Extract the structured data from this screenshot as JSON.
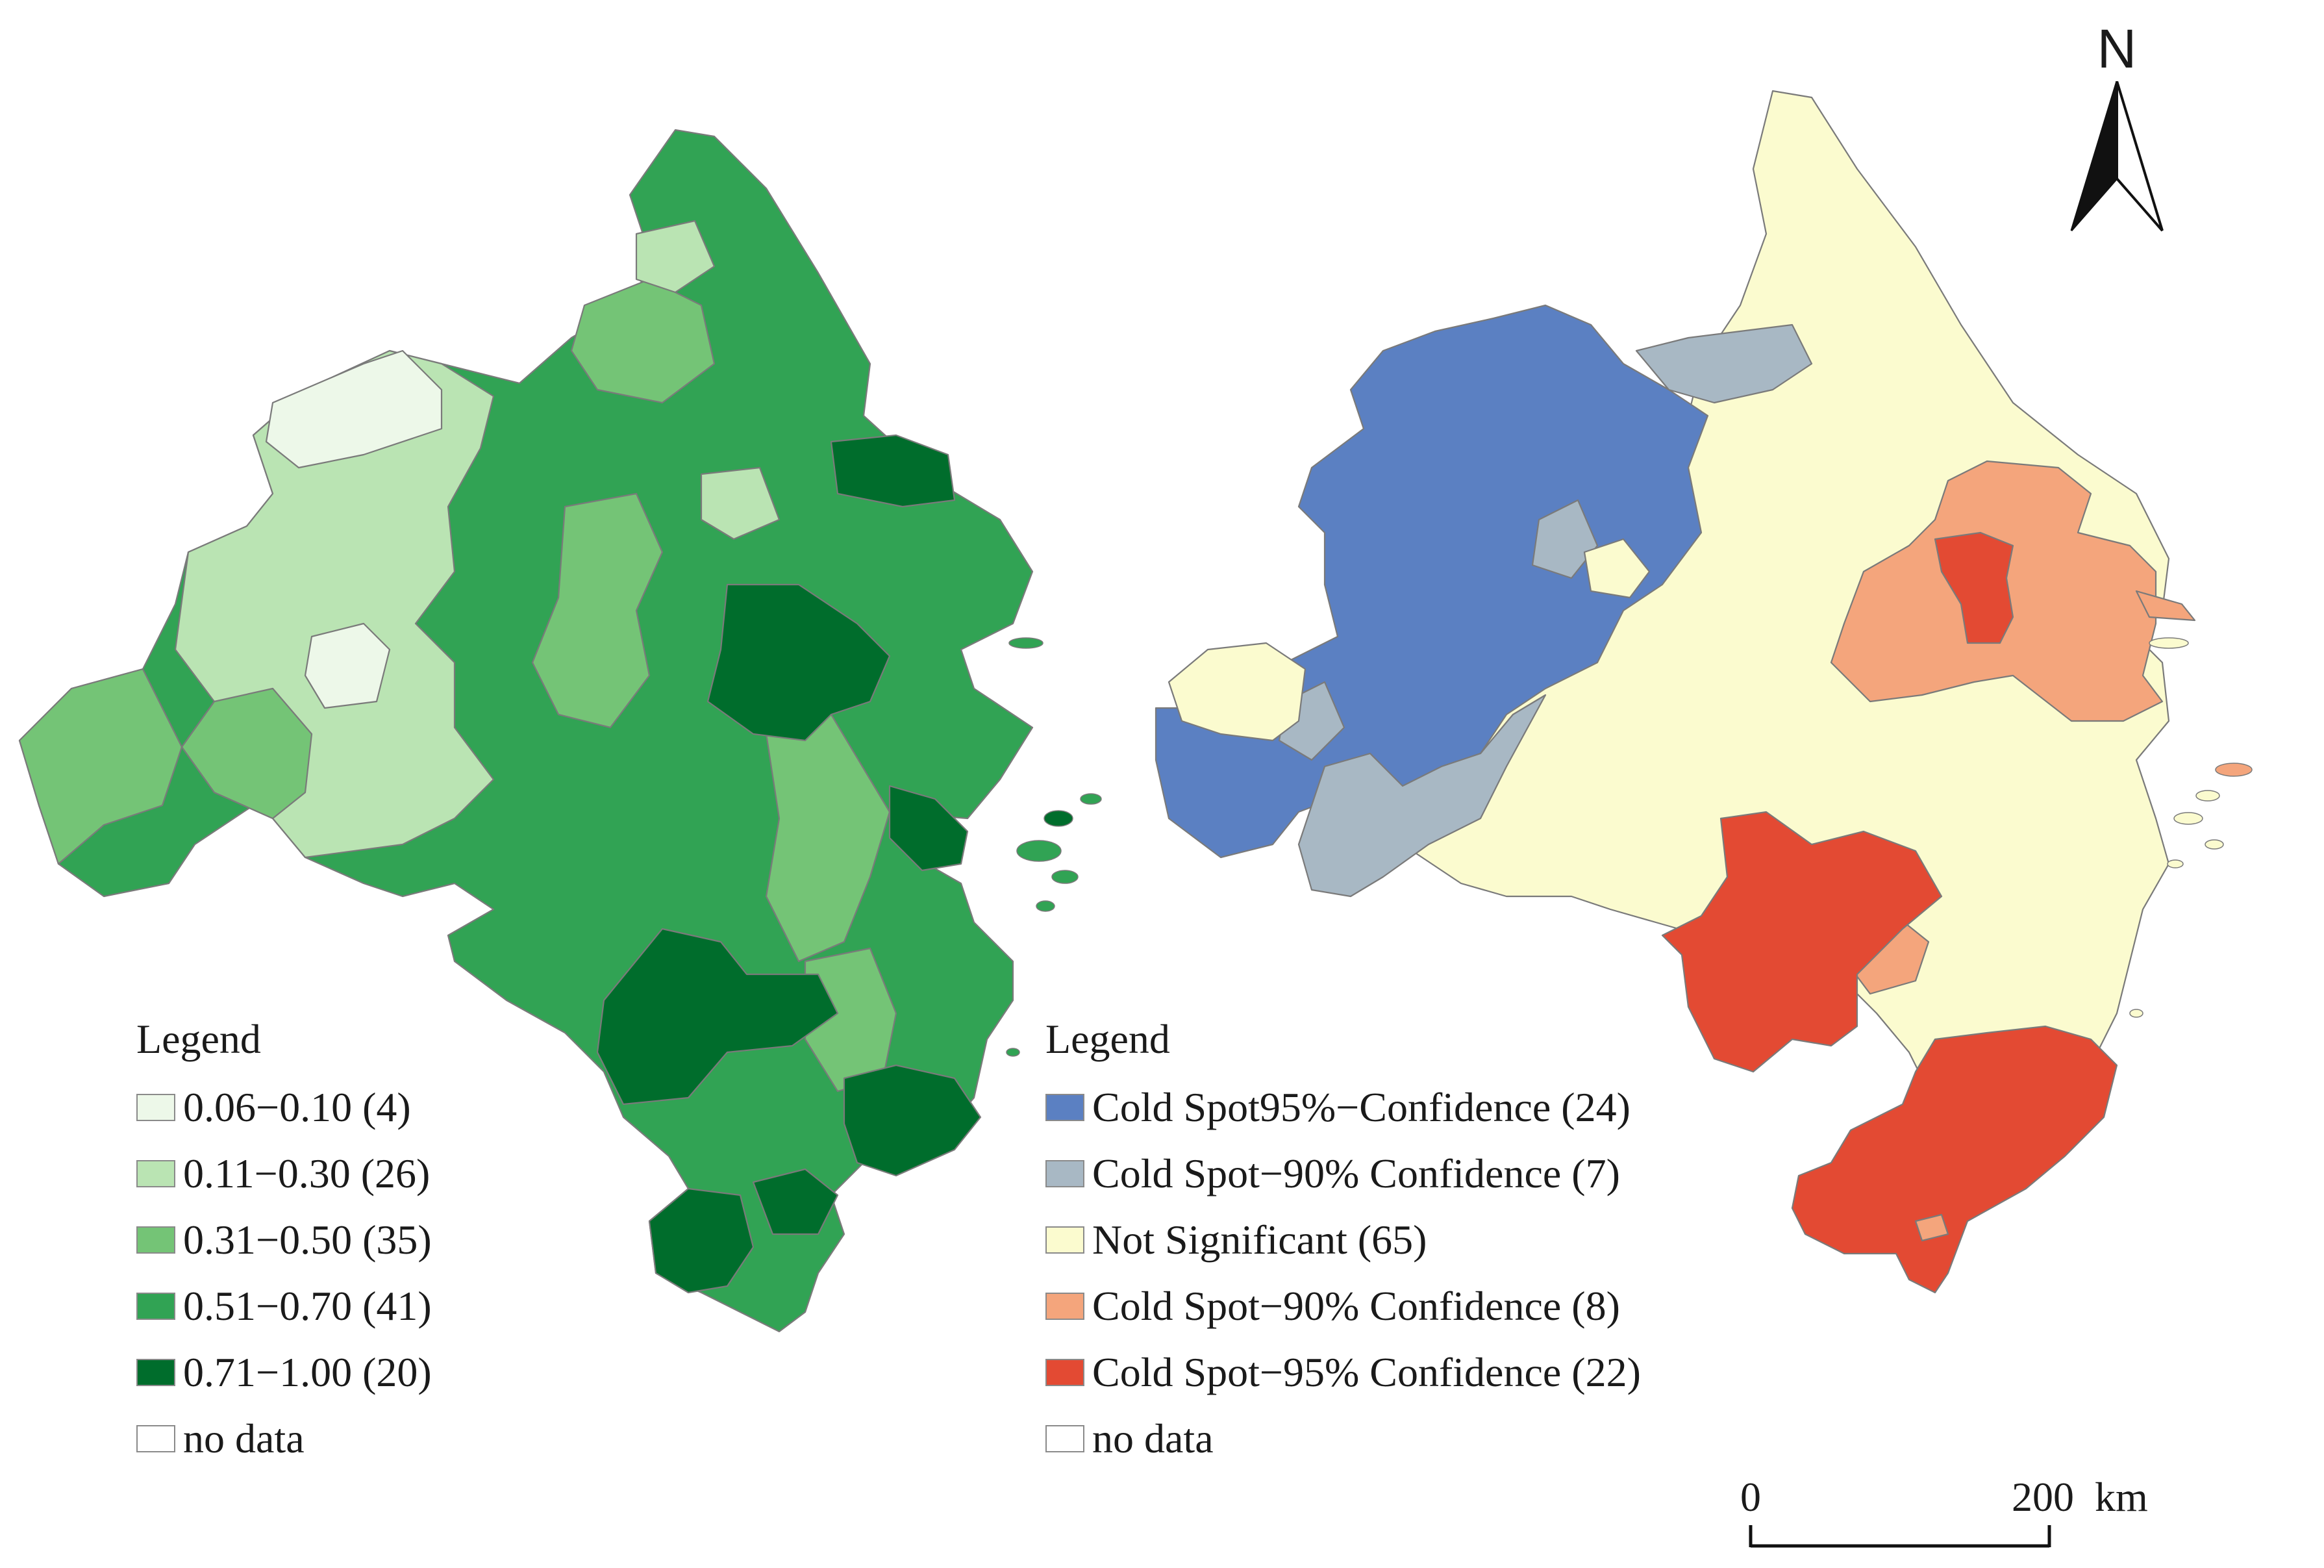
{
  "left_map": {
    "legend_title": "Legend",
    "classes": [
      {
        "label": "0.06−0.10 (4)",
        "color": "#edf8e9"
      },
      {
        "label": "0.11−0.30 (26)",
        "color": "#bae4b3"
      },
      {
        "label": "0.31−0.50 (35)",
        "color": "#74c476"
      },
      {
        "label": "0.51−0.70 (41)",
        "color": "#31a354"
      },
      {
        "label": "0.71−1.00 (20)",
        "color": "#006d2c"
      },
      {
        "label": "no data",
        "color": "#ffffff"
      }
    ]
  },
  "right_map": {
    "legend_title": "Legend",
    "classes": [
      {
        "label": "Cold Spot95%−Confidence (24)",
        "color": "#5b80c2"
      },
      {
        "label": "Cold Spot−90% Confidence (7)",
        "color": "#a8b8c4"
      },
      {
        "label": "Not Significant (65)",
        "color": "#fbfbcf"
      },
      {
        "label": "Cold Spot−90% Confidence (8)",
        "color": "#f4a57c"
      },
      {
        "label": "Cold Spot−95% Confidence (22)",
        "color": "#e34a33"
      },
      {
        "label": "no data",
        "color": "#ffffff"
      }
    ]
  },
  "north_arrow": {
    "label": "N"
  },
  "scale_bar": {
    "start_label": "0",
    "end_label": "200",
    "unit": "km"
  }
}
